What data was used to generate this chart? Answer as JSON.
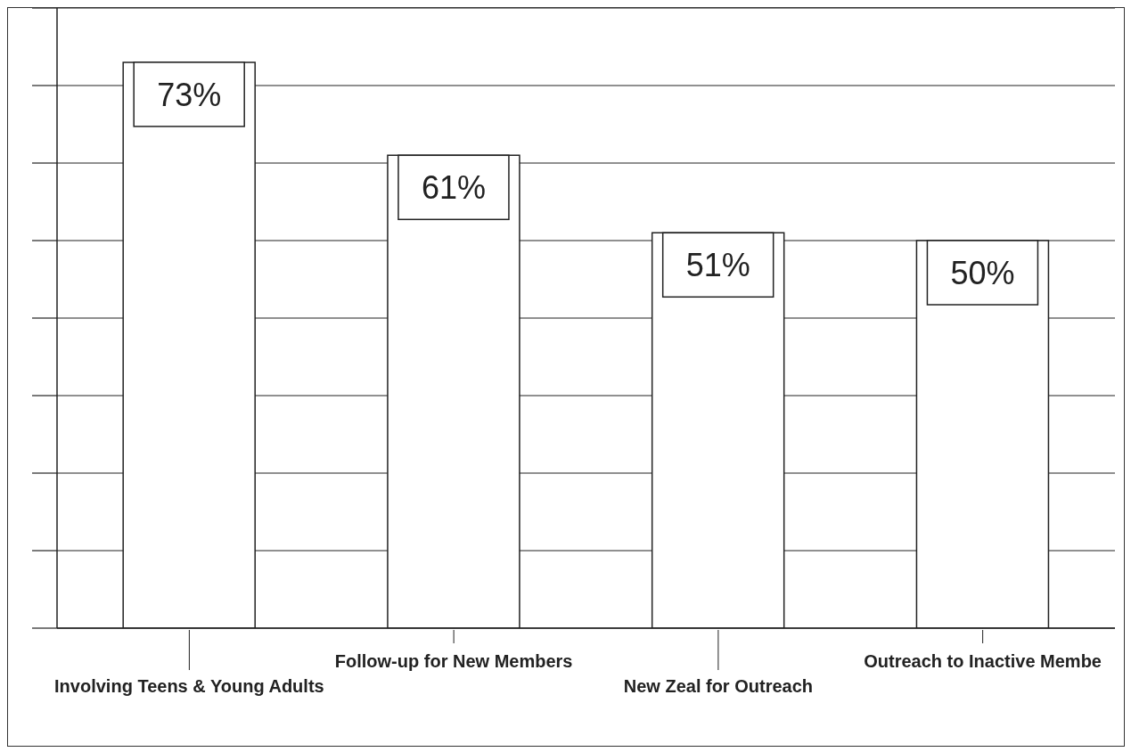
{
  "chart_data": {
    "type": "bar",
    "categories": [
      "Involving Teens & Young Adults",
      "Follow-up for New Members",
      "New Zeal for Outreach",
      "Outreach to Inactive Membe"
    ],
    "values": [
      73,
      61,
      51,
      50
    ],
    "color": "#ffffff",
    "value_labels": [
      "73%",
      "61%",
      "51%",
      "50%"
    ],
    "ylim": [
      0,
      80
    ],
    "yticks": [
      {
        "value": 0,
        "label": null
      },
      {
        "value": 10,
        "label": null
      },
      {
        "value": 20,
        "label": null
      },
      {
        "value": 30,
        "label": null
      },
      {
        "value": 40,
        "label": null
      },
      {
        "value": 50,
        "label": null
      },
      {
        "value": 60,
        "label": null
      },
      {
        "value": 70,
        "label": null
      },
      {
        "value": 80,
        "label": null
      }
    ],
    "grid": "y",
    "legend": false,
    "tick_labels": "x"
  }
}
